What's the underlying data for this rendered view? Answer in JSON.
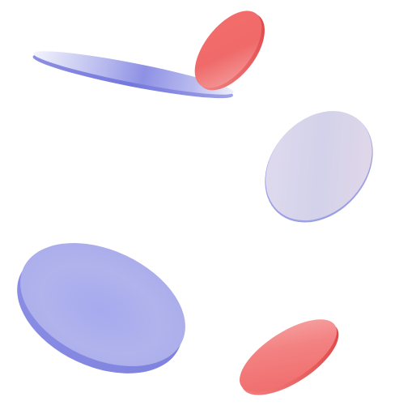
{
  "scene": {
    "description_label": "",
    "colors": {
      "background": "#ffffff",
      "blue_light": "#d7d9f6",
      "blue_mid": "#9b9ee8",
      "blue_deep": "#7c80e0",
      "lavender_face": "#d8d4ec",
      "lavender_edge": "#8d8fe0",
      "red_light": "#ff9a9a",
      "red_mid": "#f26565",
      "red_deep": "#e04848"
    },
    "discs": [
      {
        "name": "long-blue-disc",
        "shape": "blue-disc"
      },
      {
        "name": "upper-red-disc",
        "shape": "red-disc"
      },
      {
        "name": "lavender-disc",
        "shape": "lavender-disc"
      },
      {
        "name": "large-blue-disc",
        "shape": "blue-disc"
      },
      {
        "name": "lower-red-disc",
        "shape": "red-disc"
      }
    ]
  }
}
